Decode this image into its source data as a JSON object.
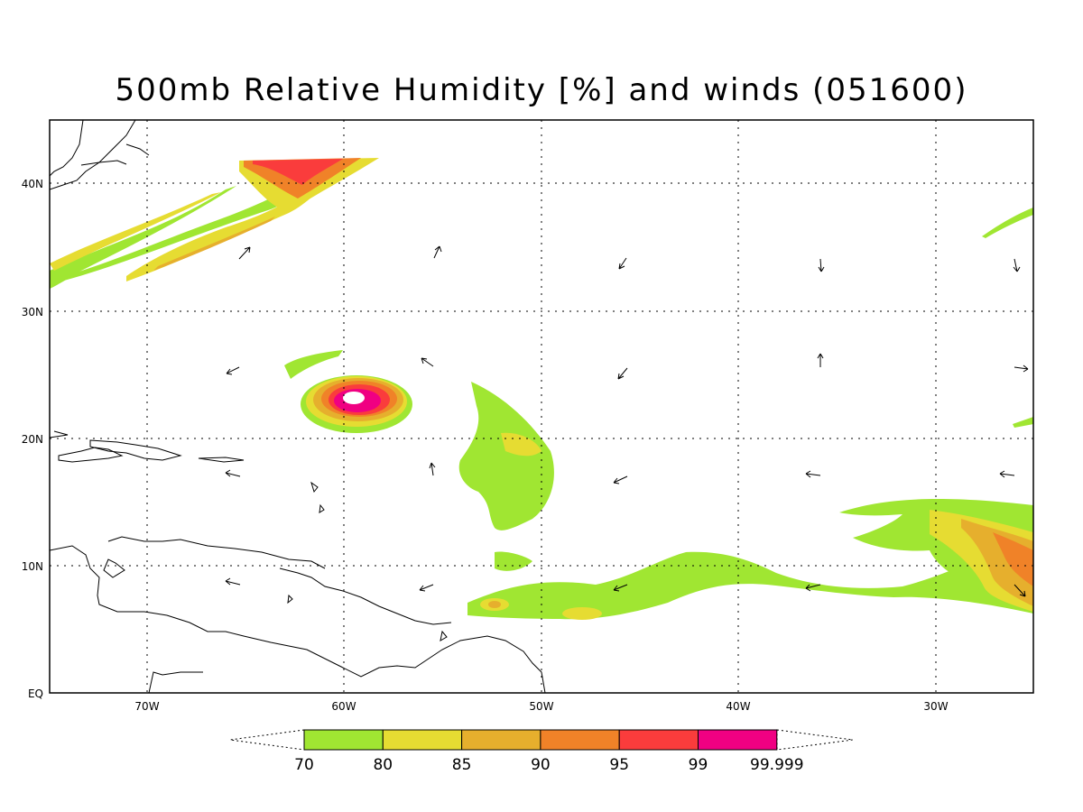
{
  "title": "500mb Relative Humidity [%] and winds (051600)",
  "lon_labels": [
    "70W",
    "60W",
    "50W",
    "40W",
    "30W"
  ],
  "lat_labels": [
    "EQ",
    "10N",
    "20N",
    "30N",
    "40N"
  ],
  "colorbar": {
    "labels": [
      "70",
      "80",
      "85",
      "90",
      "95",
      "99",
      "99.999"
    ],
    "colors": [
      "#a0e632",
      "#e6dc32",
      "#e6af2d",
      "#f08228",
      "#fa3c3c",
      "#f00082"
    ]
  }
}
